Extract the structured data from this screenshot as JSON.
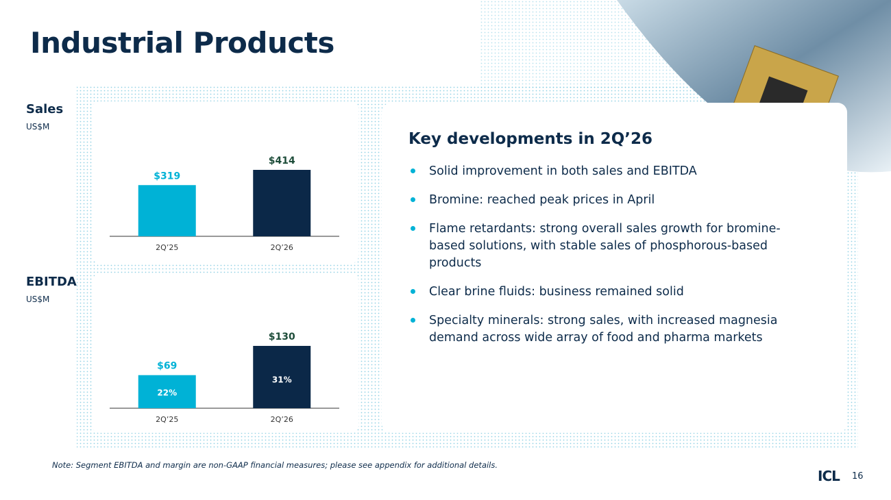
{
  "title": "Industrial Products",
  "sales_label": "Sales",
  "sales_unit": "US$M",
  "ebitda_label": "EBITDA",
  "ebitda_unit": "US$M",
  "chart_data": [
    {
      "type": "bar",
      "categories": [
        "2Q’25",
        "2Q’26"
      ],
      "values": [
        319,
        414
      ],
      "value_labels": [
        "$319",
        "$414"
      ],
      "colors": [
        "#00b2d6",
        "#0b2848"
      ],
      "label_colors": [
        "#00b2d6",
        "#1e4d3a"
      ]
    },
    {
      "type": "bar",
      "categories": [
        "2Q’25",
        "2Q’26"
      ],
      "values": [
        69,
        130
      ],
      "value_labels": [
        "$69",
        "$130"
      ],
      "colors": [
        "#00b2d6",
        "#0b2848"
      ],
      "label_colors": [
        "#00b2d6",
        "#1e4d3a"
      ],
      "margins": {
        "values": [
          22,
          31
        ],
        "value_labels": [
          "22%",
          "31%"
        ]
      }
    }
  ],
  "key_developments": {
    "heading": "Key developments in 2Q’26",
    "bullets": [
      "Solid improvement in both sales and EBITDA",
      "Bromine: reached peak prices in April",
      "Flame retardants: strong overall sales growth for bromine-based solutions, with stable sales of phosphorous-based products",
      "Clear brine fluids: business remained solid",
      "Specialty minerals: strong sales, with increased magnesia demand across wide array of food and pharma markets"
    ]
  },
  "note": "Note: Segment EBITDA and margin are non-GAAP financial measures; please see appendix for additional details.",
  "page_number": "16",
  "logo": "ICL"
}
